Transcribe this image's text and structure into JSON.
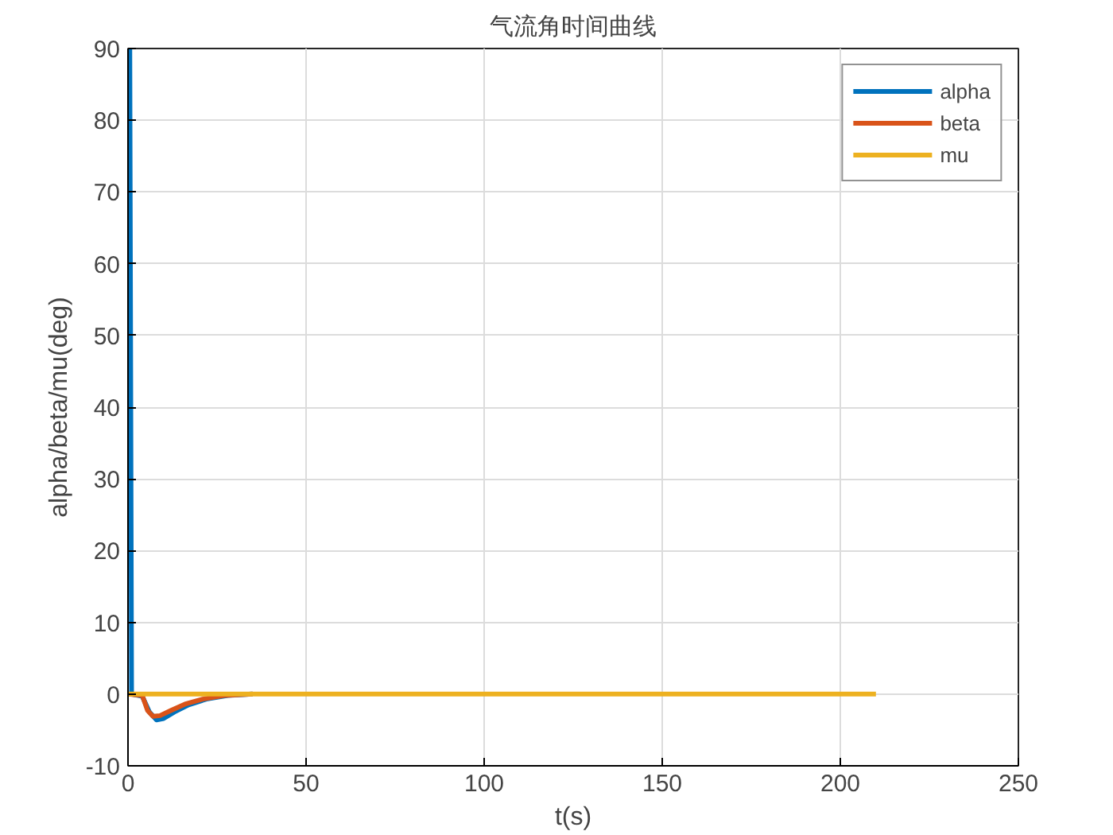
{
  "chart_data": {
    "type": "line",
    "title": "气流角时间曲线",
    "xlabel": "t(s)",
    "ylabel": "alpha/beta/mu(deg)",
    "xlim": [
      0,
      250
    ],
    "xticks": [
      0,
      50,
      100,
      150,
      200,
      250
    ],
    "ylim": [
      -10,
      90
    ],
    "yticks": [
      -10,
      0,
      10,
      20,
      30,
      40,
      50,
      60,
      70,
      80,
      90
    ],
    "grid": true,
    "legend": "top right",
    "line_style": "solid",
    "marker": "none",
    "series": [
      {
        "name": "alpha",
        "color": "#0072bd",
        "x": [
          0.5,
          1,
          4,
          6,
          8,
          10,
          13,
          17,
          22,
          28,
          35
        ],
        "values": [
          90,
          0,
          -0.3,
          -2.5,
          -3.6,
          -3.4,
          -2.5,
          -1.5,
          -0.7,
          -0.2,
          0
        ]
      },
      {
        "name": "beta",
        "color": "#d95319",
        "x": [
          0,
          4,
          5.5,
          7,
          9,
          12,
          16,
          21,
          27,
          35
        ],
        "values": [
          0,
          -0.2,
          -2.3,
          -3.1,
          -3.0,
          -2.3,
          -1.4,
          -0.7,
          -0.2,
          0
        ]
      },
      {
        "name": "mu",
        "color": "#edb120",
        "x": [
          0,
          210
        ],
        "values": [
          0,
          0
        ]
      }
    ]
  }
}
